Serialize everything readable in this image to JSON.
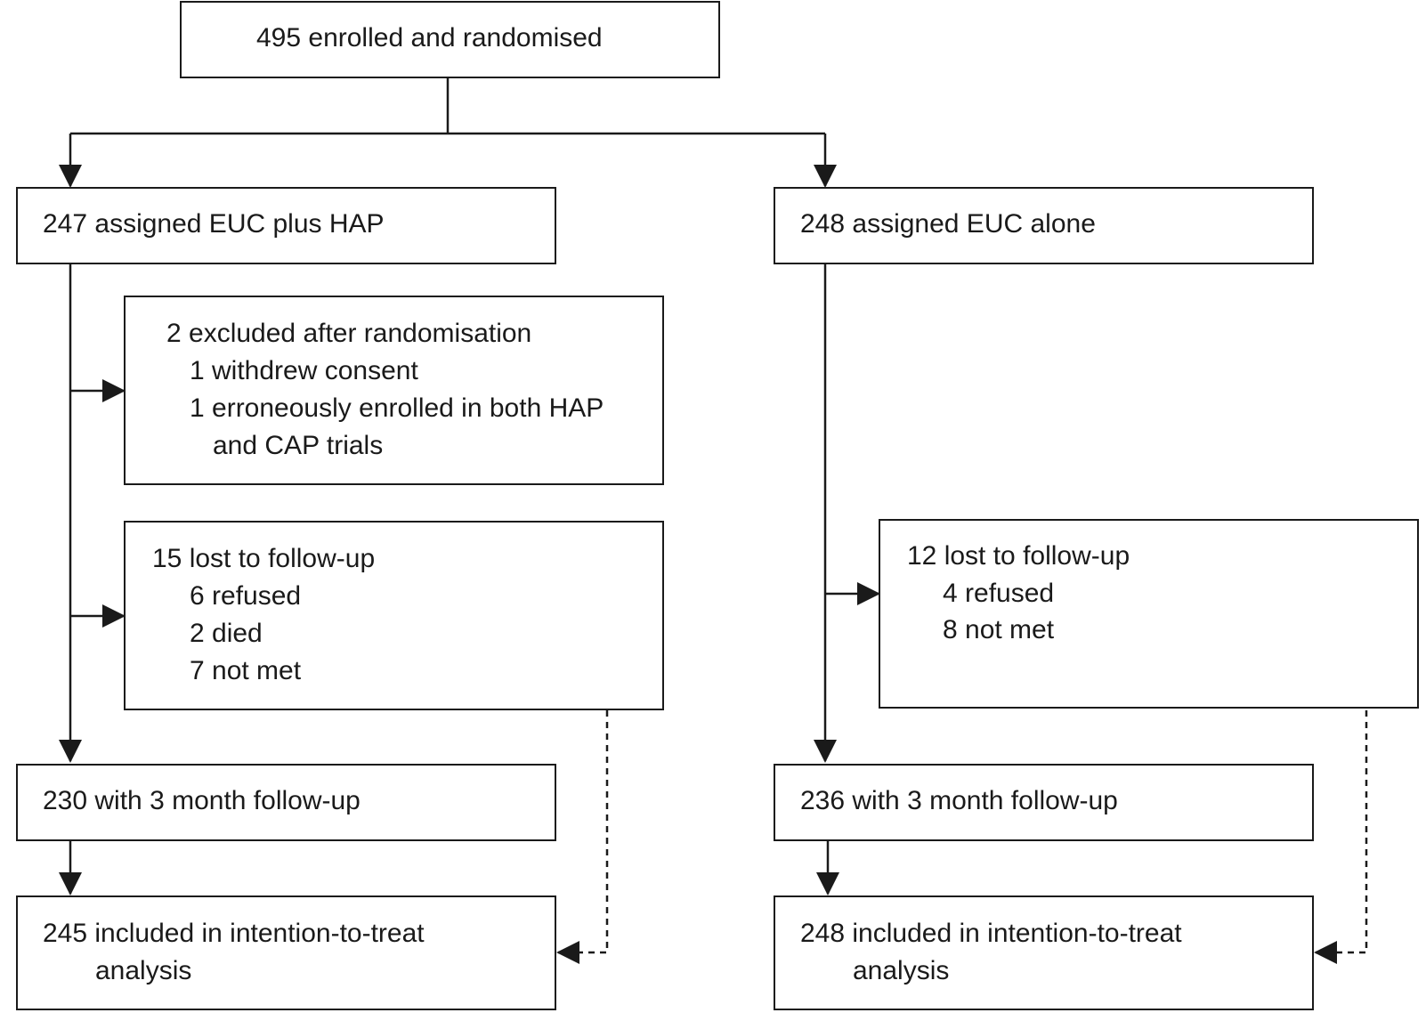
{
  "diagram": {
    "enrolled": {
      "lines": [
        "495 enrolled and randomised"
      ]
    },
    "hap_arm": {
      "assigned": {
        "lines": [
          "247 assigned EUC plus HAP"
        ]
      },
      "excluded": {
        "lines": [
          "2 excluded after randomisation",
          "1 withdrew consent",
          "1 erroneously enrolled in both HAP",
          "and CAP trials"
        ]
      },
      "lost": {
        "lines": [
          "15 lost to follow-up",
          "6 refused",
          "2 died",
          "7 not met"
        ]
      },
      "followup": {
        "lines": [
          "230 with 3 month follow-up"
        ]
      },
      "itt": {
        "lines": [
          "245 included in intention-to-treat",
          "analysis"
        ]
      }
    },
    "euc_arm": {
      "assigned": {
        "lines": [
          "248 assigned EUC alone"
        ]
      },
      "lost": {
        "lines": [
          "12 lost to follow-up",
          "4 refused",
          "8 not met"
        ]
      },
      "followup": {
        "lines": [
          "236 with 3 month follow-up"
        ]
      },
      "itt": {
        "lines": [
          "248 included in intention-to-treat",
          "analysis"
        ]
      }
    }
  },
  "colors": {
    "stroke": "#1a1a1a",
    "background": "#ffffff"
  }
}
